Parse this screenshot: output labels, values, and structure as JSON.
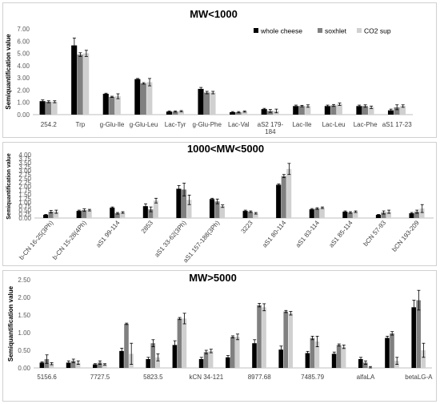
{
  "colors": {
    "whole_cheese": "#000000",
    "soxhlet": "#808080",
    "co2_sup": "#d0d0d0"
  },
  "chart_data": [
    {
      "type": "bar",
      "title": "MW<1000",
      "ylabel": "Semiquantification value",
      "ylim": [
        0,
        7
      ],
      "yticks": [
        "0.00",
        "1.00",
        "2.00",
        "3.00",
        "4.00",
        "5.00",
        "6.00",
        "7.00"
      ],
      "ytick_values": [
        0,
        1,
        2,
        3,
        4,
        5,
        6,
        7
      ],
      "legend": "top-right",
      "categories": [
        [
          "254.2"
        ],
        [
          "Trp"
        ],
        [
          "g-Glu-Ile"
        ],
        [
          "g-Glu-Leu"
        ],
        [
          "Lac-Tyr"
        ],
        [
          "g-Glu-Phe"
        ],
        [
          "Lac-Val"
        ],
        [
          "aS2 179-",
          "184"
        ],
        [
          "Lac-Ile"
        ],
        [
          "Lac-Leu"
        ],
        [
          "Lac-Phe"
        ],
        [
          "aS1 17-23"
        ]
      ],
      "series": [
        {
          "name": "whole cheese",
          "values": [
            1.1,
            5.65,
            1.7,
            2.9,
            0.25,
            2.1,
            0.2,
            0.45,
            0.7,
            0.7,
            0.7,
            0.35
          ],
          "errors": [
            0.1,
            0.6,
            0.05,
            0.05,
            0.05,
            0.12,
            0.05,
            0.06,
            0.08,
            0.08,
            0.08,
            0.1
          ]
        },
        {
          "name": "soxhlet",
          "values": [
            1.05,
            4.9,
            1.45,
            2.55,
            0.25,
            1.8,
            0.2,
            0.3,
            0.7,
            0.75,
            0.7,
            0.6
          ],
          "errors": [
            0.08,
            0.15,
            0.05,
            0.06,
            0.05,
            0.1,
            0.05,
            0.12,
            0.06,
            0.08,
            0.1,
            0.2
          ]
        },
        {
          "name": "CO2 sup",
          "values": [
            1.05,
            5.0,
            1.5,
            2.65,
            0.28,
            1.8,
            0.25,
            0.3,
            0.7,
            0.85,
            0.6,
            0.7
          ],
          "errors": [
            0.08,
            0.25,
            0.2,
            0.3,
            0.05,
            0.1,
            0.05,
            0.15,
            0.1,
            0.1,
            0.1,
            0.1
          ]
        }
      ]
    },
    {
      "type": "bar",
      "title": "1000<MW<5000",
      "ylabel": "Semiquantification value",
      "ylim": [
        0,
        4
      ],
      "yticks": [
        "0.00",
        "0.25",
        "0.50",
        "0.75",
        "1.00",
        "1.25",
        "1.50",
        "1.75",
        "2.00",
        "2.25",
        "2.50",
        "2.75",
        "3.00",
        "3.25",
        "3.50",
        "3.75",
        "4.00"
      ],
      "ytick_values": [
        0,
        0.25,
        0.5,
        0.75,
        1,
        1.25,
        1.5,
        1.75,
        2,
        2.25,
        2.5,
        2.75,
        3,
        3.25,
        3.5,
        3.75,
        4
      ],
      "categories": [
        [
          "b-CN 16-25(3Ph)"
        ],
        [
          "b-CN 15-28(4Ph)"
        ],
        [
          "aS1 99-114"
        ],
        [
          "2853"
        ],
        [
          "aS1 33-62(3Ph)"
        ],
        [
          "aS1 157-188(3Ph)"
        ],
        [
          "3223"
        ],
        [
          "aS1 80-114"
        ],
        [
          "aS1 83-114"
        ],
        [
          "aS1 85-114"
        ],
        [
          "bCN 57-93"
        ],
        [
          "bCN 193-209"
        ]
      ],
      "series": [
        {
          "name": "whole cheese",
          "values": [
            0.2,
            0.45,
            0.65,
            0.75,
            1.85,
            1.2,
            0.45,
            2.1,
            0.55,
            0.4,
            0.2,
            0.3
          ],
          "errors": [
            0.03,
            0.05,
            0.05,
            0.15,
            0.2,
            0.05,
            0.05,
            0.05,
            0.05,
            0.05,
            0.03,
            0.05
          ]
        },
        {
          "name": "soxhlet",
          "values": [
            0.4,
            0.5,
            0.3,
            0.55,
            1.8,
            1.05,
            0.4,
            2.65,
            0.6,
            0.35,
            0.35,
            0.4
          ],
          "errors": [
            0.08,
            0.08,
            0.05,
            0.15,
            0.4,
            0.15,
            0.05,
            0.1,
            0.05,
            0.05,
            0.1,
            0.1
          ]
        },
        {
          "name": "CO2 sup",
          "values": [
            0.4,
            0.5,
            0.35,
            1.1,
            1.15,
            0.75,
            0.3,
            3.1,
            0.65,
            0.4,
            0.4,
            0.6
          ],
          "errors": [
            0.1,
            0.05,
            0.05,
            0.15,
            0.3,
            0.08,
            0.05,
            0.35,
            0.05,
            0.05,
            0.1,
            0.25
          ]
        }
      ]
    },
    {
      "type": "bar",
      "title": "MW>5000",
      "ylabel": "Semiquantification value",
      "ylim": [
        0,
        2.5
      ],
      "yticks": [
        "0.00",
        "0.50",
        "1.00",
        "1.50",
        "2.00",
        "2.50"
      ],
      "ytick_values": [
        0,
        0.5,
        1,
        1.5,
        2,
        2.5
      ],
      "categories": [
        [
          "5156.6"
        ],
        [
          ""
        ],
        [
          "7727.5"
        ],
        [
          ""
        ],
        [
          "5823.5"
        ],
        [
          ""
        ],
        [
          "kCN 34-121"
        ],
        [
          ""
        ],
        [
          "8977.68"
        ],
        [
          ""
        ],
        [
          "7485.79"
        ],
        [
          ""
        ],
        [
          "alfaLA"
        ],
        [
          ""
        ],
        [
          "betaLG-A"
        ]
      ],
      "series": [
        {
          "name": "whole cheese",
          "values": [
            0.15,
            0.15,
            0.1,
            0.48,
            0.25,
            0.65,
            0.25,
            0.3,
            0.7,
            0.52,
            0.42,
            0.4,
            0.25,
            0.85,
            1.72
          ],
          "errors": [
            0.02,
            0.05,
            0.02,
            0.08,
            0.05,
            0.12,
            0.05,
            0.05,
            0.1,
            0.1,
            0.05,
            0.05,
            0.05,
            0.05,
            0.2
          ]
        },
        {
          "name": "soxhlet",
          "values": [
            0.25,
            0.2,
            0.15,
            1.25,
            0.7,
            1.4,
            0.45,
            0.88,
            1.78,
            1.6,
            0.85,
            0.65,
            0.15,
            0.98,
            1.92
          ],
          "errors": [
            0.12,
            0.05,
            0.05,
            0.02,
            0.1,
            0.03,
            0.05,
            0.03,
            0.05,
            0.03,
            0.05,
            0.03,
            0.05,
            0.05,
            0.28
          ]
        },
        {
          "name": "CO2 sup",
          "values": [
            0.12,
            0.15,
            0.1,
            0.4,
            0.3,
            1.4,
            0.48,
            0.88,
            1.72,
            1.55,
            0.75,
            0.6,
            0.02,
            0.2,
            0.5
          ],
          "errors": [
            0.03,
            0.05,
            0.02,
            0.3,
            0.1,
            0.15,
            0.05,
            0.08,
            0.1,
            0.05,
            0.15,
            0.05,
            0.02,
            0.1,
            0.2
          ]
        }
      ]
    }
  ]
}
